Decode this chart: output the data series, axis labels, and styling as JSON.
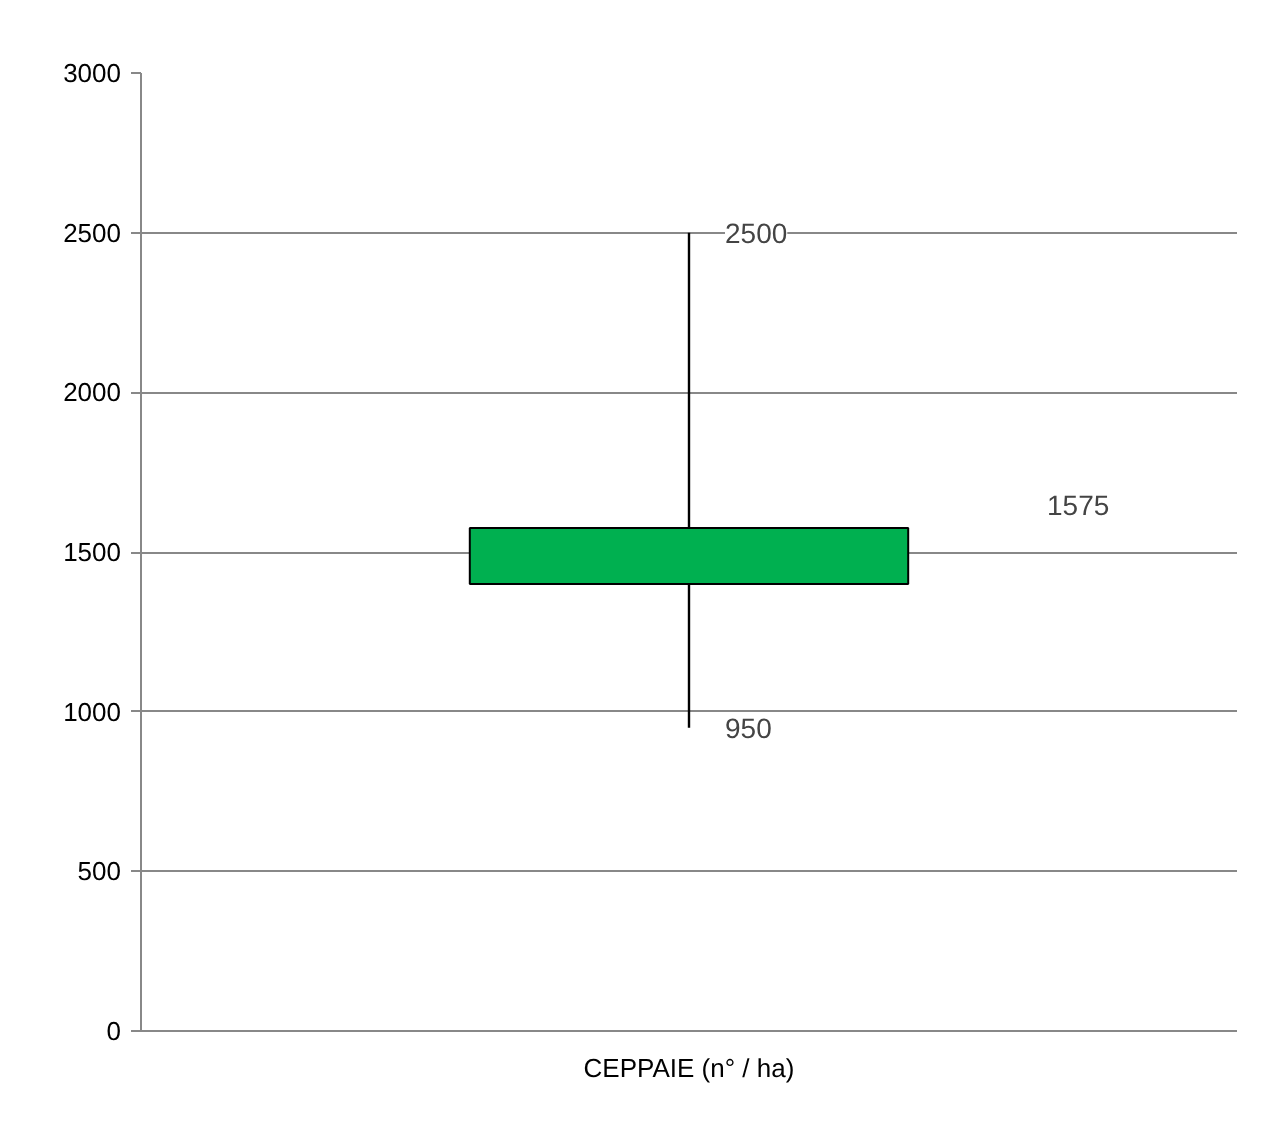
{
  "chart_data": {
    "type": "candlestick",
    "xlabel": null,
    "categories": [
      "CEPPAIE (n° / ha)"
    ],
    "ohlc": [
      [
        1400,
        2500,
        950,
        1575
      ]
    ],
    "color": "#00b050",
    "ylim": [
      0,
      3000
    ],
    "yticks": [
      0,
      500,
      1000,
      1500,
      2000,
      2500,
      3000
    ],
    "grid": "y",
    "annotations": [
      {
        "text": "2500",
        "x": "CEPPAIE (n° / ha)",
        "y": 2500
      },
      {
        "text": "950",
        "x": "CEPPAIE (n° / ha)",
        "y": 950
      },
      "1575"
    ]
  }
}
